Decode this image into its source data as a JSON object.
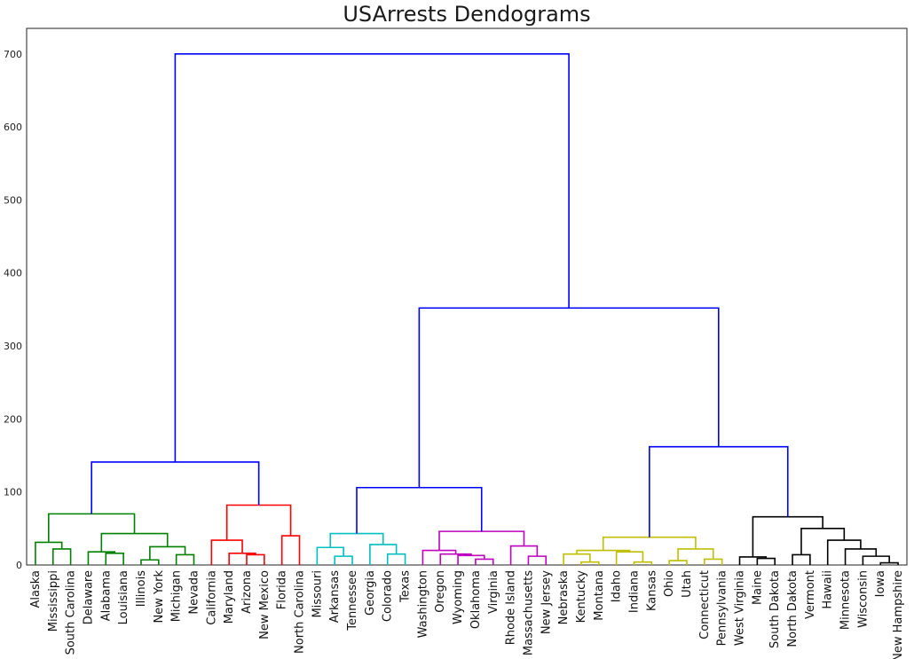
{
  "chart_data": {
    "type": "dendrogram",
    "title": "USArrests Dendograms",
    "xlabel": "",
    "ylabel": "",
    "ylim": [
      0,
      735
    ],
    "yticks": [
      0,
      100,
      200,
      300,
      400,
      500,
      600,
      700
    ],
    "grid": false,
    "leaves": [
      "Alaska",
      "Mississippi",
      "South Carolina",
      "Delaware",
      "Alabama",
      "Louisiana",
      "Illinois",
      "New York",
      "Michigan",
      "Nevada",
      "California",
      "Maryland",
      "Arizona",
      "New Mexico",
      "Florida",
      "North Carolina",
      "Missouri",
      "Arkansas",
      "Tennessee",
      "Georgia",
      "Colorado",
      "Texas",
      "Washington",
      "Oregon",
      "Wyoming",
      "Oklahoma",
      "Virginia",
      "Rhode Island",
      "Massachusetts",
      "New Jersey",
      "Nebraska",
      "Kentucky",
      "Montana",
      "Idaho",
      "Indiana",
      "Kansas",
      "Ohio",
      "Utah",
      "Connecticut",
      "Pennsylvania",
      "West Virginia",
      "Maine",
      "South Dakota",
      "North Dakota",
      "Vermont",
      "Hawaii",
      "Minnesota",
      "Wisconsin",
      "Iowa",
      "New Hampshire"
    ],
    "colors": {
      "top": "#0000ff",
      "green": "#008000",
      "red": "#ff0000",
      "cyan": "#00bfbf",
      "magenta": "#bf00bf",
      "yellow": "#bfbf00",
      "black": "#000000"
    },
    "merges": [
      {
        "a": "Mississippi",
        "b": "South Carolina",
        "height": 22,
        "color": "green"
      },
      {
        "a": "Alaska",
        "b": "Mississippi|South Carolina",
        "height": 31,
        "color": "green"
      },
      {
        "a": "Alabama",
        "b": "Louisiana",
        "height": 16,
        "color": "green"
      },
      {
        "a": "Delaware",
        "b": "Alabama|Louisiana",
        "height": 18,
        "color": "green"
      },
      {
        "a": "Illinois",
        "b": "New York",
        "height": 7,
        "color": "green"
      },
      {
        "a": "Michigan",
        "b": "Nevada",
        "height": 14,
        "color": "green"
      },
      {
        "a": "Illinois|New York",
        "b": "Michigan|Nevada",
        "height": 25,
        "color": "green"
      },
      {
        "a": "Delaware|Alabama|Louisiana",
        "b": "Illinois|New York|Michigan|Nevada",
        "height": 43,
        "color": "green"
      },
      {
        "a": "Alaska|Mississippi|South Carolina",
        "b": "Delaware..Nevada",
        "height": 70,
        "color": "green"
      },
      {
        "a": "Arizona",
        "b": "New Mexico",
        "height": 14,
        "color": "red"
      },
      {
        "a": "Maryland",
        "b": "Arizona|New Mexico",
        "height": 16,
        "color": "red"
      },
      {
        "a": "California",
        "b": "Maryland|Arizona|New Mexico",
        "height": 34,
        "color": "red"
      },
      {
        "a": "Florida",
        "b": "North Carolina",
        "height": 40,
        "color": "red"
      },
      {
        "a": "California..New Mexico",
        "b": "Florida|North Carolina",
        "height": 82,
        "color": "red"
      },
      {
        "a": "Arkansas",
        "b": "Tennessee",
        "height": 12,
        "color": "cyan"
      },
      {
        "a": "Missouri",
        "b": "Arkansas|Tennessee",
        "height": 24,
        "color": "cyan"
      },
      {
        "a": "Colorado",
        "b": "Texas",
        "height": 15,
        "color": "cyan"
      },
      {
        "a": "Georgia",
        "b": "Colorado|Texas",
        "height": 28,
        "color": "cyan"
      },
      {
        "a": "Missouri|Arkansas|Tennessee",
        "b": "Georgia|Colorado|Texas",
        "height": 43,
        "color": "cyan"
      },
      {
        "a": "Oklahoma",
        "b": "Virginia",
        "height": 8,
        "color": "magenta"
      },
      {
        "a": "Wyoming",
        "b": "Oklahoma|Virginia",
        "height": 13,
        "color": "magenta"
      },
      {
        "a": "Oregon",
        "b": "Wyoming|Oklahoma|Virginia",
        "height": 15,
        "color": "magenta"
      },
      {
        "a": "Washington",
        "b": "Oregon..Virginia",
        "height": 20,
        "color": "magenta"
      },
      {
        "a": "Massachusetts",
        "b": "New Jersey",
        "height": 12,
        "color": "magenta"
      },
      {
        "a": "Rhode Island",
        "b": "Massachusetts|New Jersey",
        "height": 26,
        "color": "magenta"
      },
      {
        "a": "Washington..Virginia",
        "b": "Rhode Island..New Jersey",
        "height": 46,
        "color": "magenta"
      },
      {
        "a": "Kentucky",
        "b": "Montana",
        "height": 4,
        "color": "yellow"
      },
      {
        "a": "Nebraska",
        "b": "Kentucky|Montana",
        "height": 15,
        "color": "yellow"
      },
      {
        "a": "Kansas",
        "b": "Indiana",
        "height": 4,
        "color": "yellow"
      },
      {
        "a": "Indiana|Kansas",
        "b": "Idaho",
        "height": 18,
        "color": "yellow"
      },
      {
        "a": "Nebraska|Kentucky|Montana",
        "b": "Idaho|Indiana|Kansas",
        "height": 20,
        "color": "yellow"
      },
      {
        "a": "Ohio",
        "b": "Utah",
        "height": 6,
        "color": "yellow"
      },
      {
        "a": "Connecticut",
        "b": "Pennsylvania",
        "height": 8,
        "color": "yellow"
      },
      {
        "a": "Ohio|Utah",
        "b": "Connecticut|Pennsylvania",
        "height": 22,
        "color": "yellow"
      },
      {
        "a": "Nebraska..Kansas",
        "b": "Ohio..Pennsylvania",
        "height": 38,
        "color": "yellow"
      },
      {
        "a": "Maine",
        "b": "South Dakota",
        "height": 9,
        "color": "black"
      },
      {
        "a": "West Virginia",
        "b": "Maine|South Dakota",
        "height": 11,
        "color": "black"
      },
      {
        "a": "North Dakota",
        "b": "Vermont",
        "height": 14,
        "color": "black"
      },
      {
        "a": "Iowa",
        "b": "New Hampshire",
        "height": 3,
        "color": "black"
      },
      {
        "a": "Wisconsin",
        "b": "Iowa|New Hampshire",
        "height": 12,
        "color": "black"
      },
      {
        "a": "Minnesota",
        "b": "Wisconsin|Iowa|New Hampshire",
        "height": 22,
        "color": "black"
      },
      {
        "a": "Hawaii",
        "b": "Minnesota..New Hampshire",
        "height": 34,
        "color": "black"
      },
      {
        "a": "North Dakota|Vermont",
        "b": "Hawaii..New Hampshire",
        "height": 50,
        "color": "black"
      },
      {
        "a": "West Virginia|Maine|South Dakota",
        "b": "North Dakota..New Hampshire",
        "height": 66,
        "color": "black"
      },
      {
        "a": "Alaska..Nevada",
        "b": "California..North Carolina",
        "height": 141,
        "color": "top"
      },
      {
        "a": "Missouri..Texas",
        "b": "Washington..New Jersey",
        "height": 106,
        "color": "top"
      },
      {
        "a": "Nebraska..Pennsylvania",
        "b": "West Virginia..New Hampshire",
        "height": 162,
        "color": "top"
      },
      {
        "a": "Missouri..New Jersey",
        "b": "Nebraska..New Hampshire",
        "height": 352,
        "color": "top"
      },
      {
        "a": "Alaska..North Carolina",
        "b": "Missouri..New Hampshire",
        "height": 700,
        "color": "top"
      }
    ]
  }
}
